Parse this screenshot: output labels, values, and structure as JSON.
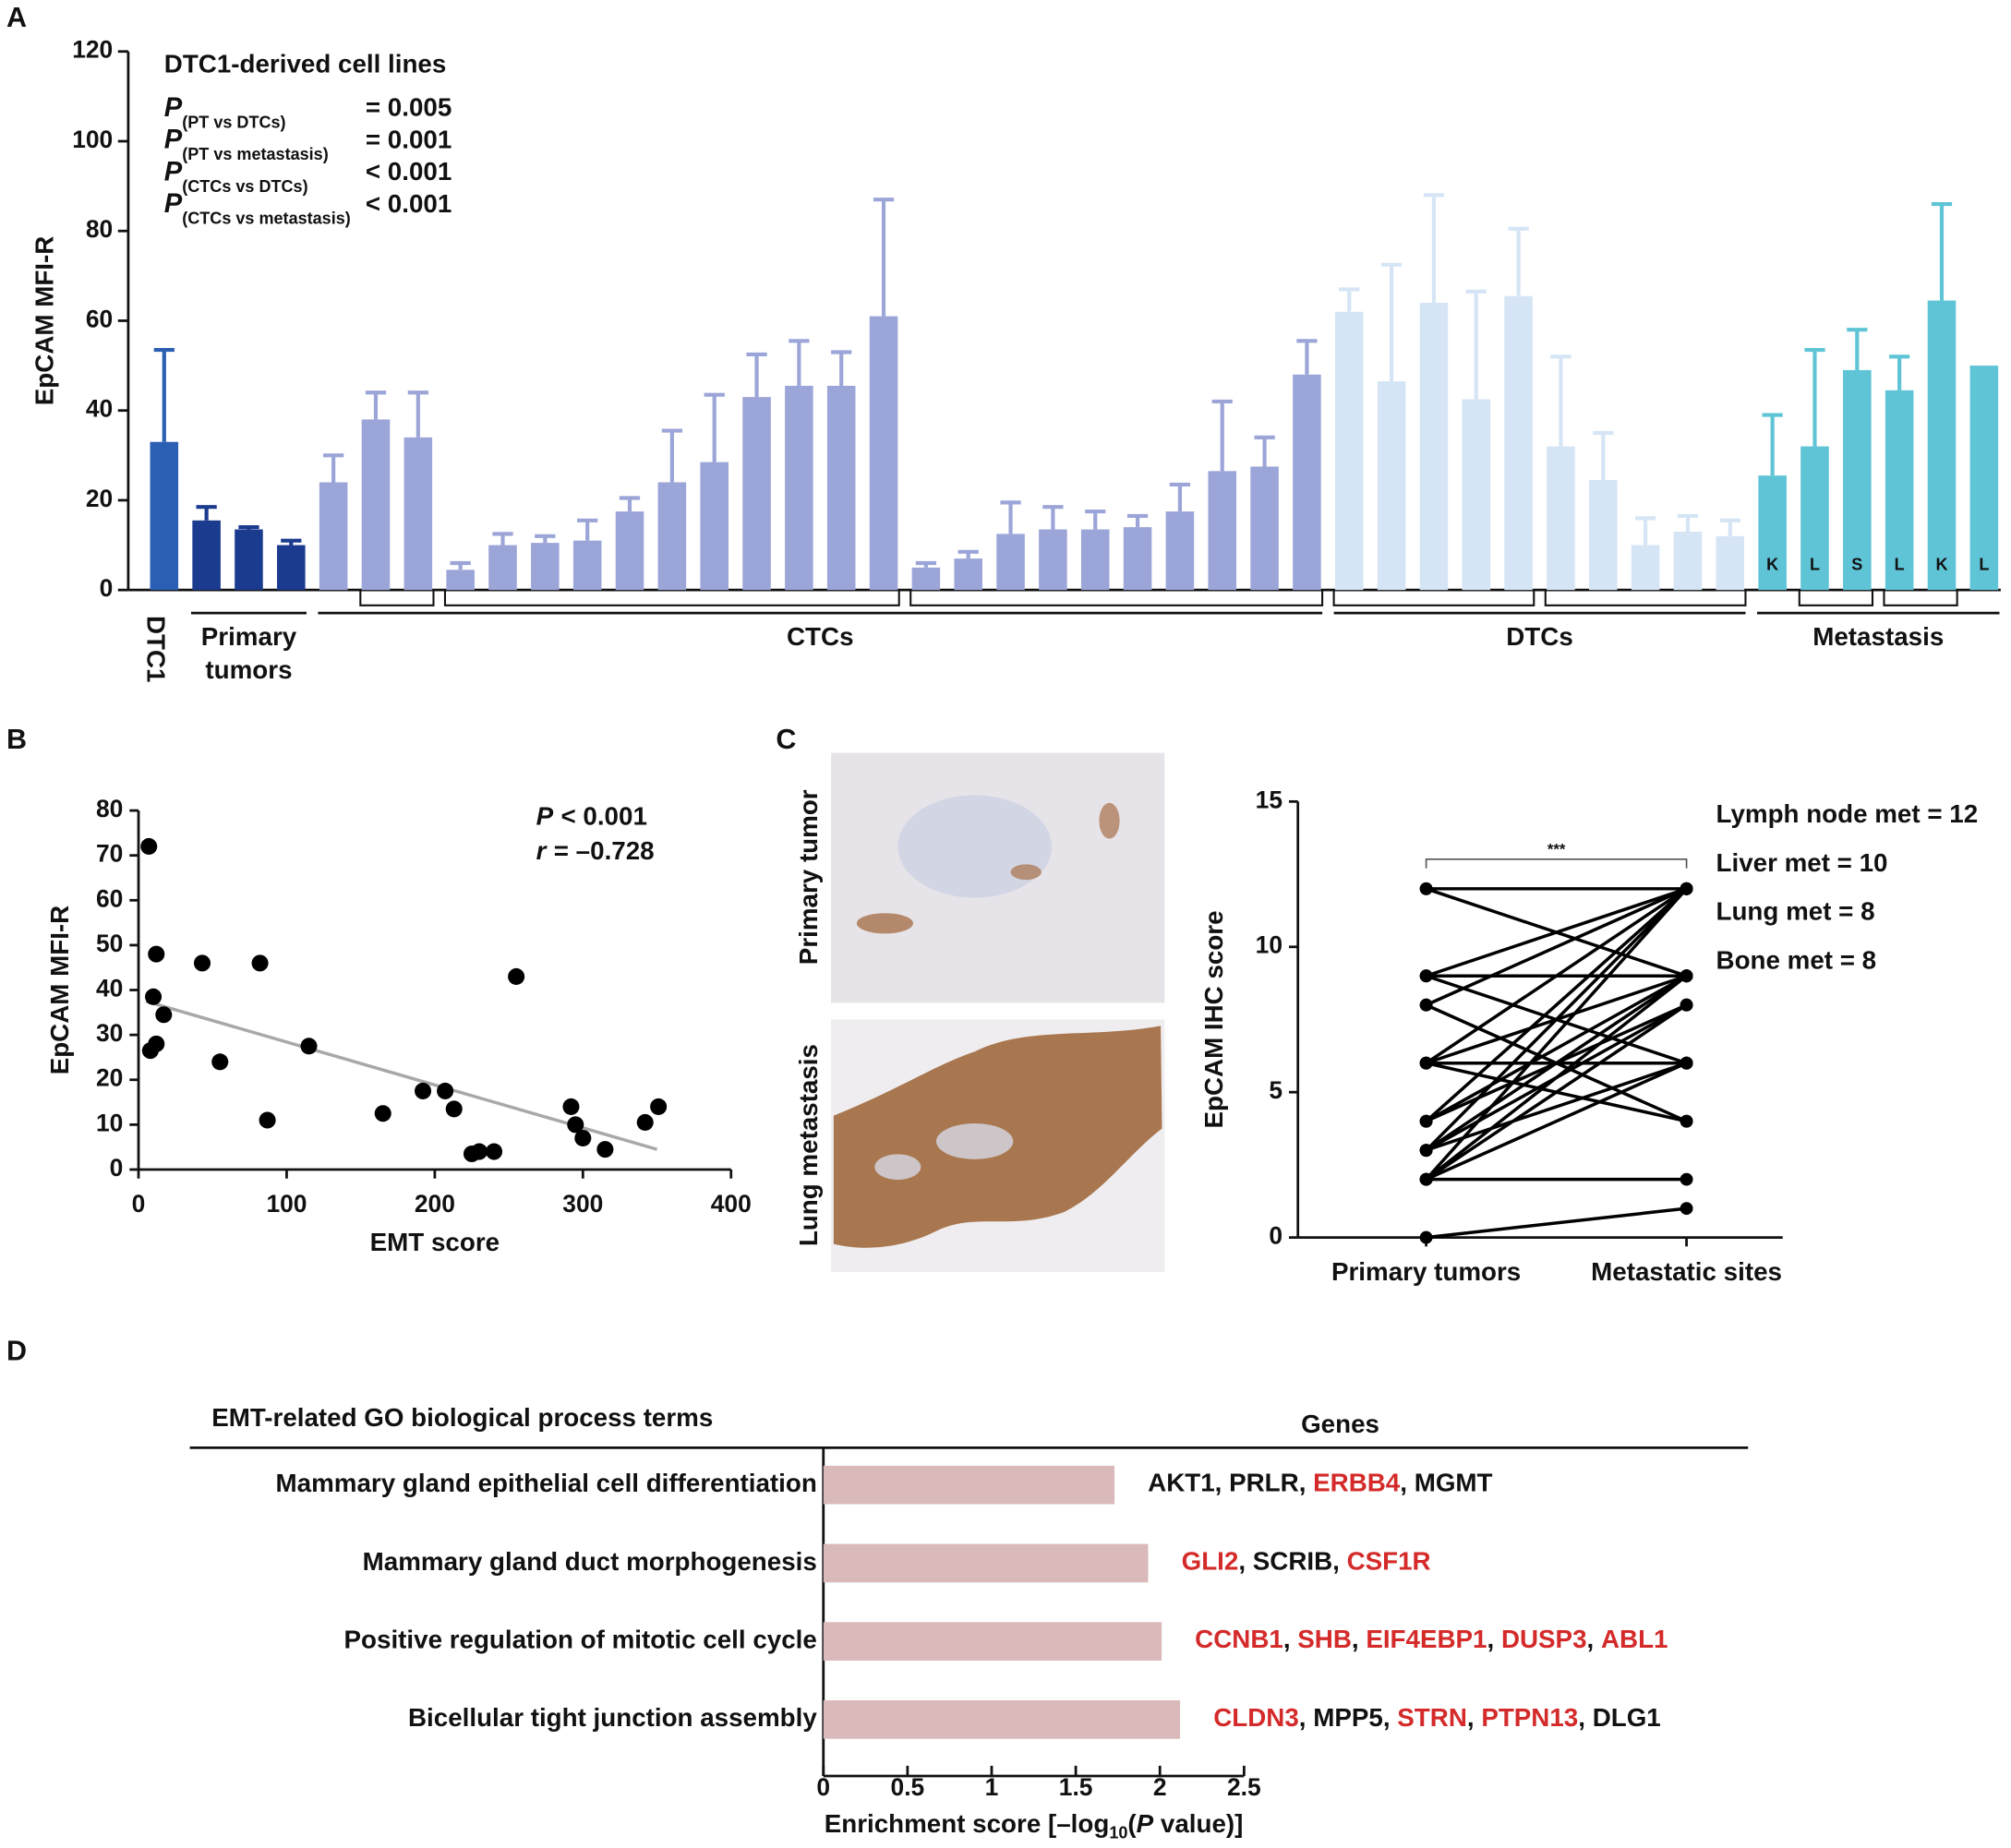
{
  "chart_data": [
    {
      "panel": "A",
      "type": "bar",
      "subtitle": "DTC1-derived cell lines",
      "ylabel": "EpCAM MFI-R",
      "ylim": [
        0,
        120
      ],
      "yticks": [
        0,
        20,
        40,
        60,
        80,
        100,
        120
      ],
      "stats": [
        {
          "symbol": "P",
          "subscript": "(PT vs DTCs)",
          "result": "= 0.005"
        },
        {
          "symbol": "P",
          "subscript": "(PT vs metastasis)",
          "result": "= 0.001"
        },
        {
          "symbol": "P",
          "subscript": "(CTCs vs DTCs)",
          "result": "< 0.001"
        },
        {
          "symbol": "P",
          "subscript": "(CTCs vs metastasis)",
          "result": "< 0.001"
        }
      ],
      "groups": [
        {
          "name": "DTC1",
          "color": "#2b5fb3",
          "values": [
            33
          ],
          "errors": [
            20.5
          ]
        },
        {
          "name": "Primary tumors",
          "color": "#1b3b8f",
          "values": [
            15.5,
            13.5,
            10
          ],
          "errors": [
            3,
            0.5,
            1
          ]
        },
        {
          "name": "CTCs",
          "color": "#9ca5d8",
          "values": [
            24,
            38,
            34,
            4.5,
            10,
            10.5,
            11,
            17.5,
            24,
            28.5,
            43,
            45.5,
            45.5,
            61,
            5,
            7,
            12.5,
            13.5,
            13.5,
            14,
            17.5,
            26.5,
            27.5,
            48
          ],
          "errors": [
            6,
            6,
            10,
            1.5,
            2.5,
            1.5,
            4.5,
            3,
            11.5,
            15,
            9.5,
            10,
            7.5,
            26,
            1,
            1.5,
            7,
            5,
            4,
            2.5,
            6,
            15.5,
            6.5,
            7.5
          ]
        },
        {
          "name": "DTCs",
          "color": "#d5e5f5",
          "values": [
            62,
            46.5,
            64,
            42.5,
            65.5,
            32,
            24.5,
            10,
            13,
            12
          ],
          "errors": [
            5,
            26,
            24,
            24,
            15,
            20,
            10.5,
            6,
            3.5,
            3.5
          ]
        },
        {
          "name": "Metastasis",
          "color": "#5ec4d6",
          "values": [
            25.5,
            32,
            49,
            44.5,
            64.5,
            50
          ],
          "errors": [
            13.5,
            21.5,
            9,
            7.5,
            21.5,
            null
          ],
          "bar_labels": [
            "K",
            "L",
            "S",
            "L",
            "K",
            "L"
          ]
        }
      ]
    },
    {
      "panel": "B",
      "type": "scatter",
      "xlabel": "EMT score",
      "ylabel": "EpCAM MFI-R",
      "color": "#000000",
      "xlim": [
        0,
        400
      ],
      "xticks": [
        0,
        100,
        200,
        300,
        400
      ],
      "ylim": [
        0,
        80
      ],
      "yticks": [
        0,
        10,
        20,
        30,
        40,
        50,
        60,
        70,
        80
      ],
      "stats": [
        {
          "symbol": "P",
          "text": "< 0.001"
        },
        {
          "symbol": "r",
          "text": "= –0.728"
        }
      ],
      "x": [
        7,
        12,
        10,
        17,
        12,
        8,
        43,
        55,
        82,
        87,
        115,
        165,
        192,
        207,
        213,
        225,
        230,
        240,
        255,
        292,
        295,
        300,
        315,
        342,
        351
      ],
      "y": [
        72,
        48,
        38.5,
        34.5,
        28,
        26.5,
        46,
        24,
        46,
        11,
        27.5,
        12.5,
        17.5,
        17.5,
        13.5,
        3.5,
        4,
        4,
        43,
        14,
        10,
        7,
        4.5,
        10.5,
        14
      ],
      "fit_line": {
        "x": [
          5,
          350
        ],
        "y": [
          37.5,
          4.5
        ],
        "color": "#a8a8a8"
      }
    },
    {
      "panel": "C",
      "type": "line",
      "ylabel": "EpCAM IHC score",
      "image_labels": [
        "Primary tumor",
        "Lung metastasis"
      ],
      "categories": [
        "Primary tumors",
        "Metastatic sites"
      ],
      "ylim": [
        0,
        15
      ],
      "yticks": [
        0,
        5,
        10,
        15
      ],
      "color": "#000000",
      "significance": "***",
      "notes": [
        "Lymph node met = 12",
        "Liver met = 10",
        "Lung met = 8",
        "Bone met = 8"
      ],
      "series": [
        {
          "values": [
            12,
            12
          ]
        },
        {
          "values": [
            12,
            9
          ]
        },
        {
          "values": [
            9,
            12
          ]
        },
        {
          "values": [
            9,
            9
          ]
        },
        {
          "values": [
            9,
            6
          ]
        },
        {
          "values": [
            8,
            12
          ]
        },
        {
          "values": [
            8,
            4
          ]
        },
        {
          "values": [
            6,
            12
          ]
        },
        {
          "values": [
            6,
            9
          ]
        },
        {
          "values": [
            6,
            6
          ]
        },
        {
          "values": [
            6,
            4
          ]
        },
        {
          "values": [
            4,
            12
          ]
        },
        {
          "values": [
            4,
            9
          ]
        },
        {
          "values": [
            4,
            8
          ]
        },
        {
          "values": [
            3,
            12
          ]
        },
        {
          "values": [
            3,
            9
          ]
        },
        {
          "values": [
            3,
            8
          ]
        },
        {
          "values": [
            3,
            6
          ]
        },
        {
          "values": [
            2,
            12
          ]
        },
        {
          "values": [
            2,
            9
          ]
        },
        {
          "values": [
            2,
            8
          ]
        },
        {
          "values": [
            2,
            6
          ]
        },
        {
          "values": [
            2,
            2
          ]
        },
        {
          "values": [
            0,
            1
          ]
        }
      ]
    },
    {
      "panel": "D",
      "type": "bar",
      "horizontal": true,
      "header": "EMT-related GO biological process terms",
      "genes_header": "Genes",
      "xlabel": {
        "prefix": "Enrichment score [–log",
        "subscript": "10",
        "middle": "(",
        "symbol": "P",
        "suffix": " value)]"
      },
      "xlim": [
        0,
        2.5
      ],
      "xticks": [
        0,
        0.5,
        1,
        1.5,
        2,
        2.5
      ],
      "color": "#d9b9b9",
      "separator": ", ",
      "categories": [
        "Mammary gland epithelial cell differentiation",
        "Mammary gland duct morphogenesis",
        "Positive regulation of mitotic cell cycle",
        "Bicellular tight junction assembly"
      ],
      "values": [
        1.73,
        1.93,
        2.01,
        2.12
      ],
      "genes": [
        [
          {
            "text": "AKT1",
            "color": "#111111"
          },
          {
            "text": "PRLR",
            "color": "#111111"
          },
          {
            "text": "ERBB4",
            "color": "#d42a2a"
          },
          {
            "text": "MGMT",
            "color": "#111111"
          }
        ],
        [
          {
            "text": "GLI2",
            "color": "#d42a2a"
          },
          {
            "text": "SCRIB",
            "color": "#111111"
          },
          {
            "text": "CSF1R",
            "color": "#d42a2a"
          }
        ],
        [
          {
            "text": "CCNB1",
            "color": "#d42a2a"
          },
          {
            "text": "SHB",
            "color": "#d42a2a"
          },
          {
            "text": "EIF4EBP1",
            "color": "#d42a2a"
          },
          {
            "text": "DUSP3",
            "color": "#d42a2a"
          },
          {
            "text": "ABL1",
            "color": "#d42a2a"
          }
        ],
        [
          {
            "text": "CLDN3",
            "color": "#d42a2a"
          },
          {
            "text": "MPP5",
            "color": "#111111"
          },
          {
            "text": "STRN",
            "color": "#d42a2a"
          },
          {
            "text": "PTPN13",
            "color": "#d42a2a"
          },
          {
            "text": "DLG1",
            "color": "#111111"
          }
        ]
      ]
    }
  ]
}
